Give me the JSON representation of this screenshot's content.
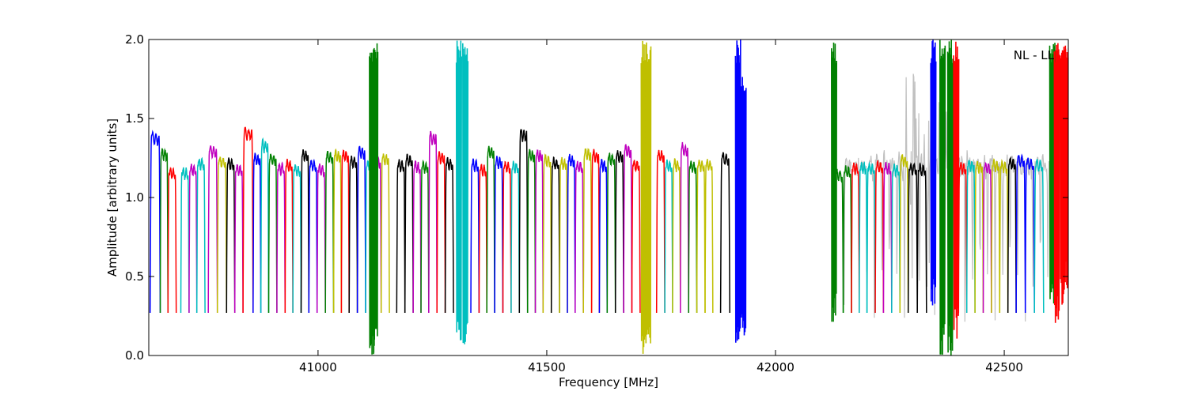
{
  "chart_data": {
    "type": "line",
    "title": "",
    "annotation": "NL - LL",
    "xlabel": "Frequency [MHz]",
    "ylabel": "Amplitude [arbitrary units]",
    "xlim": [
      40630,
      42640
    ],
    "ylim": [
      0.0,
      2.0
    ],
    "xticks": [
      41000,
      41500,
      42000,
      42500
    ],
    "xtick_labels": [
      "41000",
      "41500",
      "42000",
      "42500"
    ],
    "yticks": [
      0.0,
      0.5,
      1.0,
      1.5,
      2.0
    ],
    "ytick_labels": [
      "0.0",
      "0.5",
      "1.0",
      "1.5",
      "2.0"
    ],
    "grid": false,
    "colors": [
      "#0000ff",
      "#008000",
      "#ff0000",
      "#00bfbf",
      "#bf00bf",
      "#bfbf00",
      "#000000"
    ],
    "background_color": "#c0c0c0",
    "gap_range": [
      41940,
      42128
    ],
    "subband_width_mhz": 16.5,
    "segments": [
      {
        "x0": 40633,
        "x1": 40655,
        "color": "#0000ff",
        "peak": 1.37
      },
      {
        "x0": 40655,
        "x1": 40672,
        "color": "#008000",
        "peak": 1.27
      },
      {
        "x0": 40672,
        "x1": 40690,
        "color": "#ff0000",
        "peak": 1.15
      },
      {
        "x0": 40700,
        "x1": 40718,
        "color": "#00bfbf",
        "peak": 1.15
      },
      {
        "x0": 40718,
        "x1": 40735,
        "color": "#bf00bf",
        "peak": 1.17
      },
      {
        "x0": 40735,
        "x1": 40753,
        "color": "#00bfbf",
        "peak": 1.21
      },
      {
        "x0": 40760,
        "x1": 40780,
        "color": "#bf00bf",
        "peak": 1.29
      },
      {
        "x0": 40780,
        "x1": 40800,
        "color": "#bfbf00",
        "peak": 1.22
      },
      {
        "x0": 40800,
        "x1": 40818,
        "color": "#000000",
        "peak": 1.21
      },
      {
        "x0": 40818,
        "x1": 40836,
        "color": "#bf00bf",
        "peak": 1.17
      },
      {
        "x0": 40836,
        "x1": 40858,
        "color": "#ff0000",
        "peak": 1.4
      },
      {
        "x0": 40858,
        "x1": 40875,
        "color": "#0000ff",
        "peak": 1.24
      },
      {
        "x0": 40875,
        "x1": 40892,
        "color": "#00bfbf",
        "peak": 1.32
      },
      {
        "x0": 40892,
        "x1": 40910,
        "color": "#008000",
        "peak": 1.24
      },
      {
        "x0": 40910,
        "x1": 40928,
        "color": "#bf00bf",
        "peak": 1.18
      },
      {
        "x0": 40928,
        "x1": 40945,
        "color": "#ff0000",
        "peak": 1.2
      },
      {
        "x0": 40945,
        "x1": 40963,
        "color": "#00bfbf",
        "peak": 1.17
      },
      {
        "x0": 40963,
        "x1": 40980,
        "color": "#000000",
        "peak": 1.26
      },
      {
        "x0": 40980,
        "x1": 40998,
        "color": "#0000ff",
        "peak": 1.2
      },
      {
        "x0": 40998,
        "x1": 41016,
        "color": "#bf00bf",
        "peak": 1.17
      },
      {
        "x0": 41016,
        "x1": 41034,
        "color": "#008000",
        "peak": 1.25
      },
      {
        "x0": 41034,
        "x1": 41051,
        "color": "#bfbf00",
        "peak": 1.26
      },
      {
        "x0": 41051,
        "x1": 41068,
        "color": "#ff0000",
        "peak": 1.26
      },
      {
        "x0": 41068,
        "x1": 41086,
        "color": "#000000",
        "peak": 1.22
      },
      {
        "x0": 41086,
        "x1": 41104,
        "color": "#0000ff",
        "peak": 1.28
      },
      {
        "x0": 41104,
        "x1": 41121,
        "color": "#00bfbf",
        "peak": 1.2
      },
      {
        "x0": 41121,
        "x1": 41138,
        "color": "#bf00bf",
        "peak": 1.22
      },
      {
        "x0": 41138,
        "x1": 41156,
        "color": "#bfbf00",
        "peak": 1.24
      },
      {
        "x0": 41172,
        "x1": 41190,
        "color": "#000000",
        "peak": 1.2
      },
      {
        "x0": 41190,
        "x1": 41208,
        "color": "#000000",
        "peak": 1.23
      },
      {
        "x0": 41208,
        "x1": 41225,
        "color": "#bf00bf",
        "peak": 1.19
      },
      {
        "x0": 41225,
        "x1": 41242,
        "color": "#008000",
        "peak": 1.19
      },
      {
        "x0": 41242,
        "x1": 41260,
        "color": "#bf00bf",
        "peak": 1.37
      },
      {
        "x0": 41260,
        "x1": 41278,
        "color": "#ff0000",
        "peak": 1.25
      },
      {
        "x0": 41278,
        "x1": 41296,
        "color": "#000000",
        "peak": 1.21
      },
      {
        "x0": 41334,
        "x1": 41352,
        "color": "#0000ff",
        "peak": 1.2
      },
      {
        "x0": 41352,
        "x1": 41369,
        "color": "#ff0000",
        "peak": 1.17
      },
      {
        "x0": 41369,
        "x1": 41386,
        "color": "#008000",
        "peak": 1.28
      },
      {
        "x0": 41386,
        "x1": 41404,
        "color": "#0000ff",
        "peak": 1.22
      },
      {
        "x0": 41404,
        "x1": 41422,
        "color": "#ff0000",
        "peak": 1.19
      },
      {
        "x0": 41422,
        "x1": 41440,
        "color": "#00bfbf",
        "peak": 1.19
      },
      {
        "x0": 41440,
        "x1": 41458,
        "color": "#000000",
        "peak": 1.39
      },
      {
        "x0": 41458,
        "x1": 41475,
        "color": "#008000",
        "peak": 1.26
      },
      {
        "x0": 41475,
        "x1": 41492,
        "color": "#bf00bf",
        "peak": 1.26
      },
      {
        "x0": 41492,
        "x1": 41510,
        "color": "#bfbf00",
        "peak": 1.23
      },
      {
        "x0": 41510,
        "x1": 41528,
        "color": "#000000",
        "peak": 1.21
      },
      {
        "x0": 41528,
        "x1": 41545,
        "color": "#bfbf00",
        "peak": 1.21
      },
      {
        "x0": 41545,
        "x1": 41562,
        "color": "#0000ff",
        "peak": 1.23
      },
      {
        "x0": 41562,
        "x1": 41580,
        "color": "#bf00bf",
        "peak": 1.19
      },
      {
        "x0": 41580,
        "x1": 41598,
        "color": "#bfbf00",
        "peak": 1.27
      },
      {
        "x0": 41598,
        "x1": 41615,
        "color": "#ff0000",
        "peak": 1.26
      },
      {
        "x0": 41615,
        "x1": 41632,
        "color": "#0000ff",
        "peak": 1.2
      },
      {
        "x0": 41632,
        "x1": 41650,
        "color": "#008000",
        "peak": 1.24
      },
      {
        "x0": 41650,
        "x1": 41668,
        "color": "#000000",
        "peak": 1.26
      },
      {
        "x0": 41668,
        "x1": 41686,
        "color": "#bf00bf",
        "peak": 1.29
      },
      {
        "x0": 41686,
        "x1": 41704,
        "color": "#ff0000",
        "peak": 1.2
      },
      {
        "x0": 41740,
        "x1": 41758,
        "color": "#ff0000",
        "peak": 1.26
      },
      {
        "x0": 41758,
        "x1": 41775,
        "color": "#00bfbf",
        "peak": 1.2
      },
      {
        "x0": 41775,
        "x1": 41792,
        "color": "#bfbf00",
        "peak": 1.2
      },
      {
        "x0": 41792,
        "x1": 41810,
        "color": "#bf00bf",
        "peak": 1.3
      },
      {
        "x0": 41810,
        "x1": 41828,
        "color": "#008000",
        "peak": 1.19
      },
      {
        "x0": 41828,
        "x1": 41846,
        "color": "#bfbf00",
        "peak": 1.2
      },
      {
        "x0": 41846,
        "x1": 41863,
        "color": "#bfbf00",
        "peak": 1.2
      },
      {
        "x0": 41880,
        "x1": 41900,
        "color": "#000000",
        "peak": 1.24
      },
      {
        "x0": 42128,
        "x1": 42148,
        "color": "#008000",
        "peak": 1.14
      },
      {
        "x0": 42148,
        "x1": 42166,
        "color": "#008000",
        "peak": 1.16
      },
      {
        "x0": 42166,
        "x1": 42183,
        "color": "#ff0000",
        "peak": 1.18
      },
      {
        "x0": 42183,
        "x1": 42200,
        "color": "#00bfbf",
        "peak": 1.18
      },
      {
        "x0": 42200,
        "x1": 42218,
        "color": "#00bfbf",
        "peak": 1.18
      },
      {
        "x0": 42218,
        "x1": 42236,
        "color": "#ff0000",
        "peak": 1.19
      },
      {
        "x0": 42236,
        "x1": 42254,
        "color": "#bf00bf",
        "peak": 1.18
      },
      {
        "x0": 42254,
        "x1": 42272,
        "color": "#00bfbf",
        "peak": 1.17
      },
      {
        "x0": 42272,
        "x1": 42290,
        "color": "#bfbf00",
        "peak": 1.23
      },
      {
        "x0": 42290,
        "x1": 42310,
        "color": "#000000",
        "peak": 1.18
      },
      {
        "x0": 42310,
        "x1": 42330,
        "color": "#000000",
        "peak": 1.17
      },
      {
        "x0": 42400,
        "x1": 42418,
        "color": "#ff0000",
        "peak": 1.18
      },
      {
        "x0": 42418,
        "x1": 42436,
        "color": "#00bfbf",
        "peak": 1.2
      },
      {
        "x0": 42436,
        "x1": 42454,
        "color": "#bfbf00",
        "peak": 1.19
      },
      {
        "x0": 42454,
        "x1": 42472,
        "color": "#bf00bf",
        "peak": 1.19
      },
      {
        "x0": 42472,
        "x1": 42490,
        "color": "#bfbf00",
        "peak": 1.2
      },
      {
        "x0": 42490,
        "x1": 42508,
        "color": "#bfbf00",
        "peak": 1.19
      },
      {
        "x0": 42508,
        "x1": 42526,
        "color": "#000000",
        "peak": 1.21
      },
      {
        "x0": 42526,
        "x1": 42546,
        "color": "#0000ff",
        "peak": 1.23
      },
      {
        "x0": 42546,
        "x1": 42566,
        "color": "#0000ff",
        "peak": 1.21
      },
      {
        "x0": 42566,
        "x1": 42586,
        "color": "#00bfbf",
        "peak": 1.2
      }
    ],
    "spikes": [
      {
        "x": 41118,
        "color": "#008000",
        "lo": 0.0,
        "hi": 2.0
      },
      {
        "x": 41125,
        "color": "#008000",
        "lo": 0.0,
        "hi": 2.0
      },
      {
        "x": 41308,
        "color": "#00bfbf",
        "lo": 0.05,
        "hi": 2.0
      },
      {
        "x": 41322,
        "color": "#00bfbf",
        "lo": 0.05,
        "hi": 2.0
      },
      {
        "x": 41712,
        "color": "#bfbf00",
        "lo": 0.0,
        "hi": 2.0
      },
      {
        "x": 41722,
        "color": "#bfbf00",
        "lo": 0.0,
        "hi": 2.0
      },
      {
        "x": 41918,
        "color": "#0000ff",
        "lo": 0.05,
        "hi": 2.0
      },
      {
        "x": 41930,
        "color": "#0000ff",
        "lo": 0.1,
        "hi": 1.8
      },
      {
        "x": 42128,
        "color": "#008000",
        "lo": 0.2,
        "hi": 2.0
      },
      {
        "x": 42345,
        "color": "#0000ff",
        "lo": 0.3,
        "hi": 2.0
      },
      {
        "x": 42365,
        "color": "#008000",
        "lo": 0.0,
        "hi": 2.0
      },
      {
        "x": 42382,
        "color": "#008000",
        "lo": 0.0,
        "hi": 2.0
      },
      {
        "x": 42395,
        "color": "#ff0000",
        "lo": 0.1,
        "hi": 2.0
      },
      {
        "x": 42605,
        "color": "#008000",
        "lo": 0.3,
        "hi": 2.0
      },
      {
        "x": 42615,
        "color": "#ff0000",
        "lo": 0.2,
        "hi": 2.0
      },
      {
        "x": 42628,
        "color": "#ff0000",
        "lo": 0.3,
        "hi": 2.0
      },
      {
        "x": 42638,
        "color": "#ff0000",
        "lo": 0.4,
        "hi": 2.0
      }
    ]
  }
}
